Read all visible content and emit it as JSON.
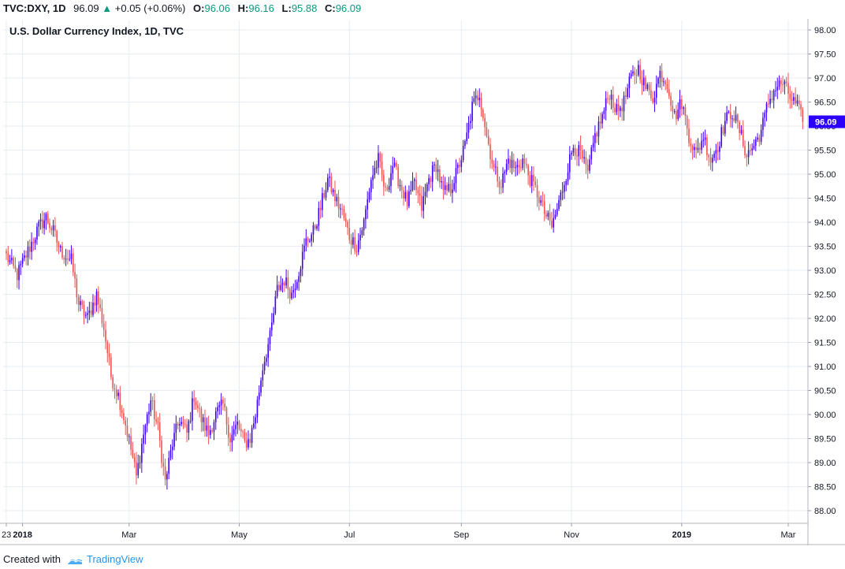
{
  "header": {
    "symbol": "TVC:DXY, 1D",
    "last": "96.09",
    "change": "+0.05 (+0.06%)",
    "o_label": "O:",
    "o_value": "96.06",
    "h_label": "H:",
    "h_value": "96.16",
    "l_label": "L:",
    "l_value": "95.88",
    "c_label": "C:",
    "c_value": "96.09",
    "up_color": "#089981"
  },
  "footer": {
    "created_with": "Created with",
    "brand": "TradingView"
  },
  "colors": {
    "up": "#3f00ff",
    "down": "#ef5350",
    "grid": "#e6ecf2",
    "price_tag": "#2c00ff"
  },
  "chart_data": {
    "type": "candlestick",
    "title": "U.S. Dollar Currency Index, 1D, TVC",
    "y_ticks": [
      "98.00",
      "97.50",
      "97.00",
      "96.50",
      "96.00",
      "95.50",
      "95.00",
      "94.50",
      "94.00",
      "93.50",
      "93.00",
      "92.50",
      "92.00",
      "91.50",
      "91.00",
      "90.50",
      "90.00",
      "89.50",
      "89.00",
      "88.50",
      "88.00"
    ],
    "ylim": [
      87.86,
      98.22
    ],
    "x_ticks": [
      {
        "label": "23",
        "day": 0
      },
      {
        "label": "2018",
        "day": 9
      },
      {
        "label": "Mar",
        "day": 68
      },
      {
        "label": "May",
        "day": 129
      },
      {
        "label": "Jul",
        "day": 190
      },
      {
        "label": "Sep",
        "day": 252
      },
      {
        "label": "Nov",
        "day": 313
      },
      {
        "label": "2019",
        "day": 374
      },
      {
        "label": "Mar",
        "day": 433
      }
    ],
    "xlim": [
      0,
      433
    ],
    "last_price": "96.09",
    "closes_approx": [
      [
        0,
        93.3
      ],
      [
        6,
        92.9
      ],
      [
        12,
        93.4
      ],
      [
        18,
        93.9
      ],
      [
        22,
        94.1
      ],
      [
        26,
        93.8
      ],
      [
        30,
        93.4
      ],
      [
        36,
        93.2
      ],
      [
        40,
        92.3
      ],
      [
        45,
        92.0
      ],
      [
        50,
        92.5
      ],
      [
        54,
        91.8
      ],
      [
        58,
        90.8
      ],
      [
        62,
        90.4
      ],
      [
        66,
        89.8
      ],
      [
        70,
        89.1
      ],
      [
        72,
        88.7
      ],
      [
        76,
        89.6
      ],
      [
        80,
        90.3
      ],
      [
        84,
        89.7
      ],
      [
        88,
        88.6
      ],
      [
        92,
        89.4
      ],
      [
        96,
        89.9
      ],
      [
        100,
        89.6
      ],
      [
        104,
        90.4
      ],
      [
        108,
        89.9
      ],
      [
        112,
        89.6
      ],
      [
        116,
        90.0
      ],
      [
        120,
        90.2
      ],
      [
        124,
        89.5
      ],
      [
        128,
        89.8
      ],
      [
        132,
        89.4
      ],
      [
        135,
        89.5
      ],
      [
        138,
        90.0
      ],
      [
        142,
        91.0
      ],
      [
        146,
        91.6
      ],
      [
        150,
        92.6
      ],
      [
        154,
        92.8
      ],
      [
        158,
        92.5
      ],
      [
        162,
        93.0
      ],
      [
        166,
        93.6
      ],
      [
        170,
        93.8
      ],
      [
        174,
        94.3
      ],
      [
        178,
        94.9
      ],
      [
        182,
        94.5
      ],
      [
        186,
        94.2
      ],
      [
        190,
        93.7
      ],
      [
        194,
        93.5
      ],
      [
        198,
        94.0
      ],
      [
        202,
        94.9
      ],
      [
        206,
        95.3
      ],
      [
        210,
        94.6
      ],
      [
        214,
        95.2
      ],
      [
        218,
        94.8
      ],
      [
        222,
        94.4
      ],
      [
        226,
        94.8
      ],
      [
        230,
        94.3
      ],
      [
        234,
        94.9
      ],
      [
        238,
        95.2
      ],
      [
        242,
        94.6
      ],
      [
        246,
        94.7
      ],
      [
        250,
        95.1
      ],
      [
        254,
        95.6
      ],
      [
        258,
        96.4
      ],
      [
        262,
        96.7
      ],
      [
        266,
        95.8
      ],
      [
        270,
        95.1
      ],
      [
        274,
        94.8
      ],
      [
        278,
        95.3
      ],
      [
        282,
        95.1
      ],
      [
        286,
        95.3
      ],
      [
        290,
        94.9
      ],
      [
        294,
        94.6
      ],
      [
        298,
        94.2
      ],
      [
        302,
        93.9
      ],
      [
        306,
        94.4
      ],
      [
        310,
        95.0
      ],
      [
        314,
        95.6
      ],
      [
        318,
        95.4
      ],
      [
        322,
        95.0
      ],
      [
        326,
        95.8
      ],
      [
        330,
        96.2
      ],
      [
        334,
        96.7
      ],
      [
        338,
        96.3
      ],
      [
        342,
        96.5
      ],
      [
        346,
        97.0
      ],
      [
        350,
        97.2
      ],
      [
        354,
        96.8
      ],
      [
        358,
        96.6
      ],
      [
        362,
        97.1
      ],
      [
        366,
        96.9
      ],
      [
        370,
        96.2
      ],
      [
        374,
        96.5
      ],
      [
        378,
        95.8
      ],
      [
        382,
        95.4
      ],
      [
        386,
        95.8
      ],
      [
        390,
        95.3
      ],
      [
        394,
        95.6
      ],
      [
        398,
        96.1
      ],
      [
        402,
        96.3
      ],
      [
        406,
        95.9
      ],
      [
        410,
        95.4
      ],
      [
        414,
        95.6
      ],
      [
        418,
        95.9
      ],
      [
        422,
        96.5
      ],
      [
        426,
        96.8
      ],
      [
        430,
        96.9
      ],
      [
        434,
        96.6
      ],
      [
        438,
        96.4
      ],
      [
        441,
        96.1
      ]
    ]
  }
}
